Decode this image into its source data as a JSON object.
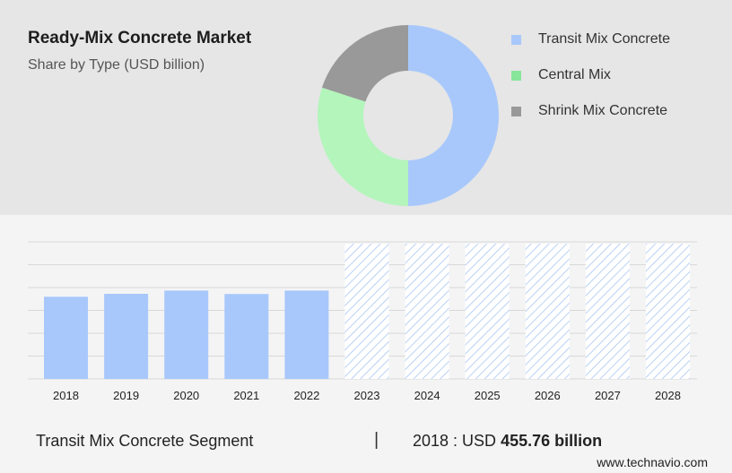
{
  "title": "Ready-Mix Concrete Market",
  "subtitle": "Share by Type (USD billion)",
  "colors": {
    "transit": "#a8c8fb",
    "central": "#b3f5bb",
    "shrink": "#999999",
    "legend_central": "#87e69a",
    "hatch": "#a9c5f2"
  },
  "donut": {
    "slices": [
      {
        "name": "Transit Mix Concrete",
        "value": 50
      },
      {
        "name": "Central Mix",
        "value": 30
      },
      {
        "name": "Shrink Mix Concrete",
        "value": 20
      }
    ]
  },
  "legend": [
    {
      "label": "Transit Mix Concrete",
      "color": "#a8c8fb"
    },
    {
      "label": "Central Mix",
      "color": "#87e69a"
    },
    {
      "label": "Shrink Mix Concrete",
      "color": "#999999"
    }
  ],
  "chart_data": {
    "type": "bar",
    "categories": [
      "2018",
      "2019",
      "2020",
      "2021",
      "2022",
      "2023",
      "2024",
      "2025",
      "2026",
      "2027",
      "2028"
    ],
    "values": [
      455.76,
      472,
      490,
      471,
      490,
      null,
      null,
      null,
      null,
      null,
      null
    ],
    "forecast_categories": [
      "2023",
      "2024",
      "2025",
      "2026",
      "2027",
      "2028"
    ],
    "ylim": [
      0,
      760
    ],
    "grid": true,
    "xlabel": "",
    "ylabel": ""
  },
  "footer": {
    "segment": "Transit Mix Concrete Segment",
    "separator": "|",
    "value_prefix": "2018 : USD",
    "value_bold": "455.76 billion",
    "url": "www.technavio.com"
  }
}
